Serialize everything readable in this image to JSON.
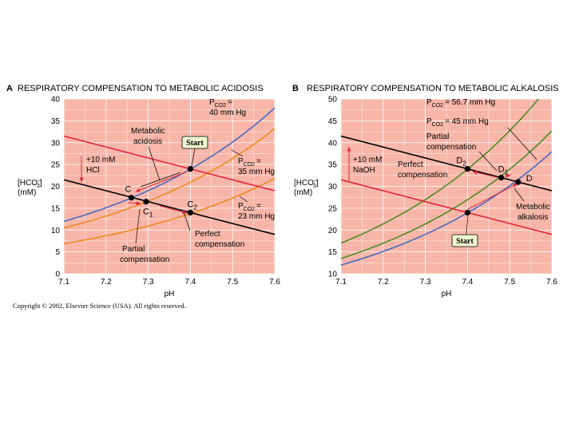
{
  "copyright": "Copyright © 2002, Elsevier Science (USA).  All rights reserved.",
  "colors": {
    "plot_bg": "#f7b6a8",
    "grid": "#ffffff",
    "blue": "#4a69c2",
    "orange": "#ee8a1c",
    "green": "#4e8a24",
    "red": "#e0263a",
    "black": "#000000",
    "start_box": "#eef6d0"
  },
  "chart_data": [
    {
      "id": "A",
      "type": "line",
      "letter": "A",
      "title": "RESPIRATORY COMPENSATION TO METABOLIC ACIDOSIS",
      "xlabel": "pH",
      "ylabel_main": "[HCO",
      "ylabel_sup": "–",
      "ylabel_sub": "3",
      "ylabel_end": "]",
      "ylabel_unit": "(mM)",
      "xlim": [
        7.1,
        7.6
      ],
      "ylim": [
        0,
        40
      ],
      "xticks": [
        "7.1",
        "7.2",
        "7.3",
        "7.4",
        "7.5",
        "7.6"
      ],
      "yticks": [
        "0",
        "5",
        "10",
        "15",
        "20",
        "25",
        "30",
        "35",
        "40"
      ],
      "isobars": [
        {
          "pco2": 40,
          "color": "blue",
          "label_l1": "P",
          "label_sub": "CO2",
          "label_l2": "= 40 mm Hg"
        },
        {
          "pco2": 35,
          "color": "orange",
          "label_l1": "P",
          "label_sub": "CO2",
          "label_l2": "= 35 mm Hg"
        },
        {
          "pco2": 23,
          "color": "orange",
          "label_l1": "P",
          "label_sub": "CO2",
          "label_l2": "= 23 mm Hg"
        }
      ],
      "buffer_lines": [
        {
          "color": "red",
          "x": [
            7.1,
            7.6
          ],
          "y": [
            31.5,
            19
          ]
        },
        {
          "color": "black",
          "x": [
            7.1,
            7.6
          ],
          "y": [
            21.5,
            9
          ]
        }
      ],
      "points": [
        {
          "label": "C",
          "sub": "",
          "x": 7.26,
          "y": 17.4
        },
        {
          "label": "C",
          "sub": "1",
          "x": 7.295,
          "y": 16.5
        },
        {
          "label": "C",
          "sub": "2",
          "x": 7.4,
          "y": 14
        },
        {
          "label": "",
          "sub": "",
          "x": 7.4,
          "y": 24
        }
      ],
      "annotations": {
        "metabolic": "Metabolic",
        "acidosis": "acidosis",
        "start": "Start",
        "added_l1": "+10 mM",
        "added_l2": "HCl",
        "partial_l1": "Partial",
        "partial_l2": "compensation",
        "perfect_l1": "Perfect",
        "perfect_l2": "compensation"
      }
    },
    {
      "id": "B",
      "type": "line",
      "letter": "B",
      "title": "RESPIRATORY COMPENSATION TO METABOLIC ALKALOSIS",
      "xlabel": "pH",
      "ylabel_main": "[HCO",
      "ylabel_sup": "–",
      "ylabel_sub": "3",
      "ylabel_end": "]",
      "ylabel_unit": "(mM)",
      "xlim": [
        7.1,
        7.6
      ],
      "ylim": [
        10,
        50
      ],
      "xticks": [
        "7.1",
        "7.2",
        "7.3",
        "7.4",
        "7.5",
        "7.6"
      ],
      "yticks": [
        "10",
        "15",
        "20",
        "25",
        "30",
        "35",
        "40",
        "45",
        "50"
      ],
      "isobars": [
        {
          "pco2": 40,
          "color": "blue"
        },
        {
          "pco2": 45,
          "color": "green",
          "label_l1": "P",
          "label_sub": "CO2",
          "label_l2": "= 45 mm Hg"
        },
        {
          "pco2": 56.7,
          "color": "green",
          "label_l1": "P",
          "label_sub": "CO2",
          "label_l2": "= 56.7 mm Hg"
        }
      ],
      "buffer_lines": [
        {
          "color": "black",
          "x": [
            7.1,
            7.6
          ],
          "y": [
            41.5,
            29
          ]
        },
        {
          "color": "red",
          "x": [
            7.1,
            7.6
          ],
          "y": [
            31.5,
            19
          ]
        }
      ],
      "points": [
        {
          "label": "D",
          "sub": "2",
          "x": 7.4,
          "y": 34
        },
        {
          "label": "D",
          "sub": "1",
          "x": 7.48,
          "y": 32
        },
        {
          "label": "D",
          "sub": "",
          "x": 7.52,
          "y": 31
        },
        {
          "label": "",
          "sub": "",
          "x": 7.4,
          "y": 24
        }
      ],
      "annotations": {
        "metabolic": "Metabolic",
        "alkalosis": "alkalosis",
        "start": "Start",
        "added_l1": "+10 mM",
        "added_l2": "NaOH",
        "partial_l1": "Partial",
        "partial_l2": "compensation",
        "perfect_l1": "Perfect",
        "perfect_l2": "compensation"
      }
    }
  ]
}
